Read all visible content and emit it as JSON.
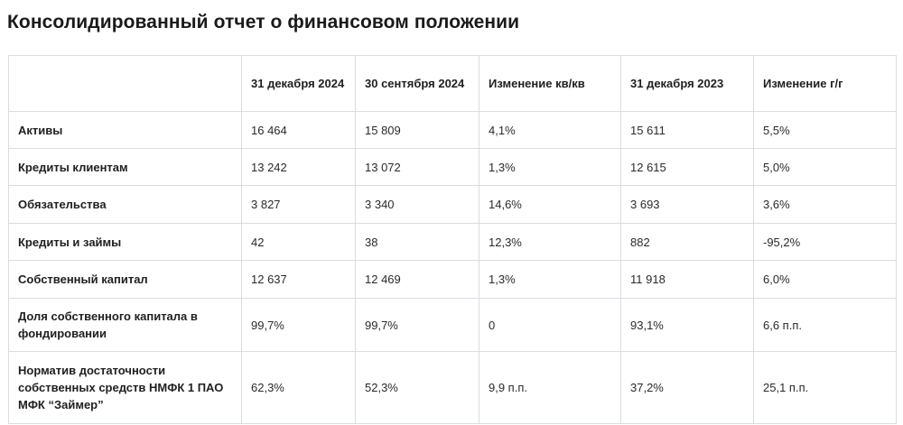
{
  "title": "Консолидированный отчет о финансовом положении",
  "table": {
    "headers": [
      "",
      "31 декабря 2024",
      "30 сентября 2024",
      "Изменение кв/кв",
      "31 декабря 2023",
      "Изменение г/г"
    ],
    "rows": [
      {
        "label": "Активы",
        "cells": [
          "16 464",
          "15 809",
          "4,1%",
          "15 611",
          "5,5%"
        ]
      },
      {
        "label": "Кредиты клиентам",
        "cells": [
          "13 242",
          "13 072",
          "1,3%",
          "12 615",
          "5,0%"
        ]
      },
      {
        "label": "Обязательства",
        "cells": [
          "3 827",
          "3 340",
          "14,6%",
          "3 693",
          "3,6%"
        ]
      },
      {
        "label": "Кредиты и займы",
        "cells": [
          "42",
          "38",
          "12,3%",
          "882",
          "-95,2%"
        ]
      },
      {
        "label": "Собственный капитал",
        "cells": [
          "12 637",
          "12 469",
          "1,3%",
          "11 918",
          "6,0%"
        ]
      },
      {
        "label": "Доля собственного капитала в фондировании",
        "cells": [
          "99,7%",
          "99,7%",
          "0",
          "93,1%",
          "6,6 п.п."
        ]
      },
      {
        "label": "Норматив достаточности собственных средств НМФК 1 ПАО МФК “Займер”",
        "cells": [
          "62,3%",
          "52,3%",
          "9,9 п.п.",
          "37,2%",
          "25,1 п.п."
        ]
      }
    ]
  }
}
